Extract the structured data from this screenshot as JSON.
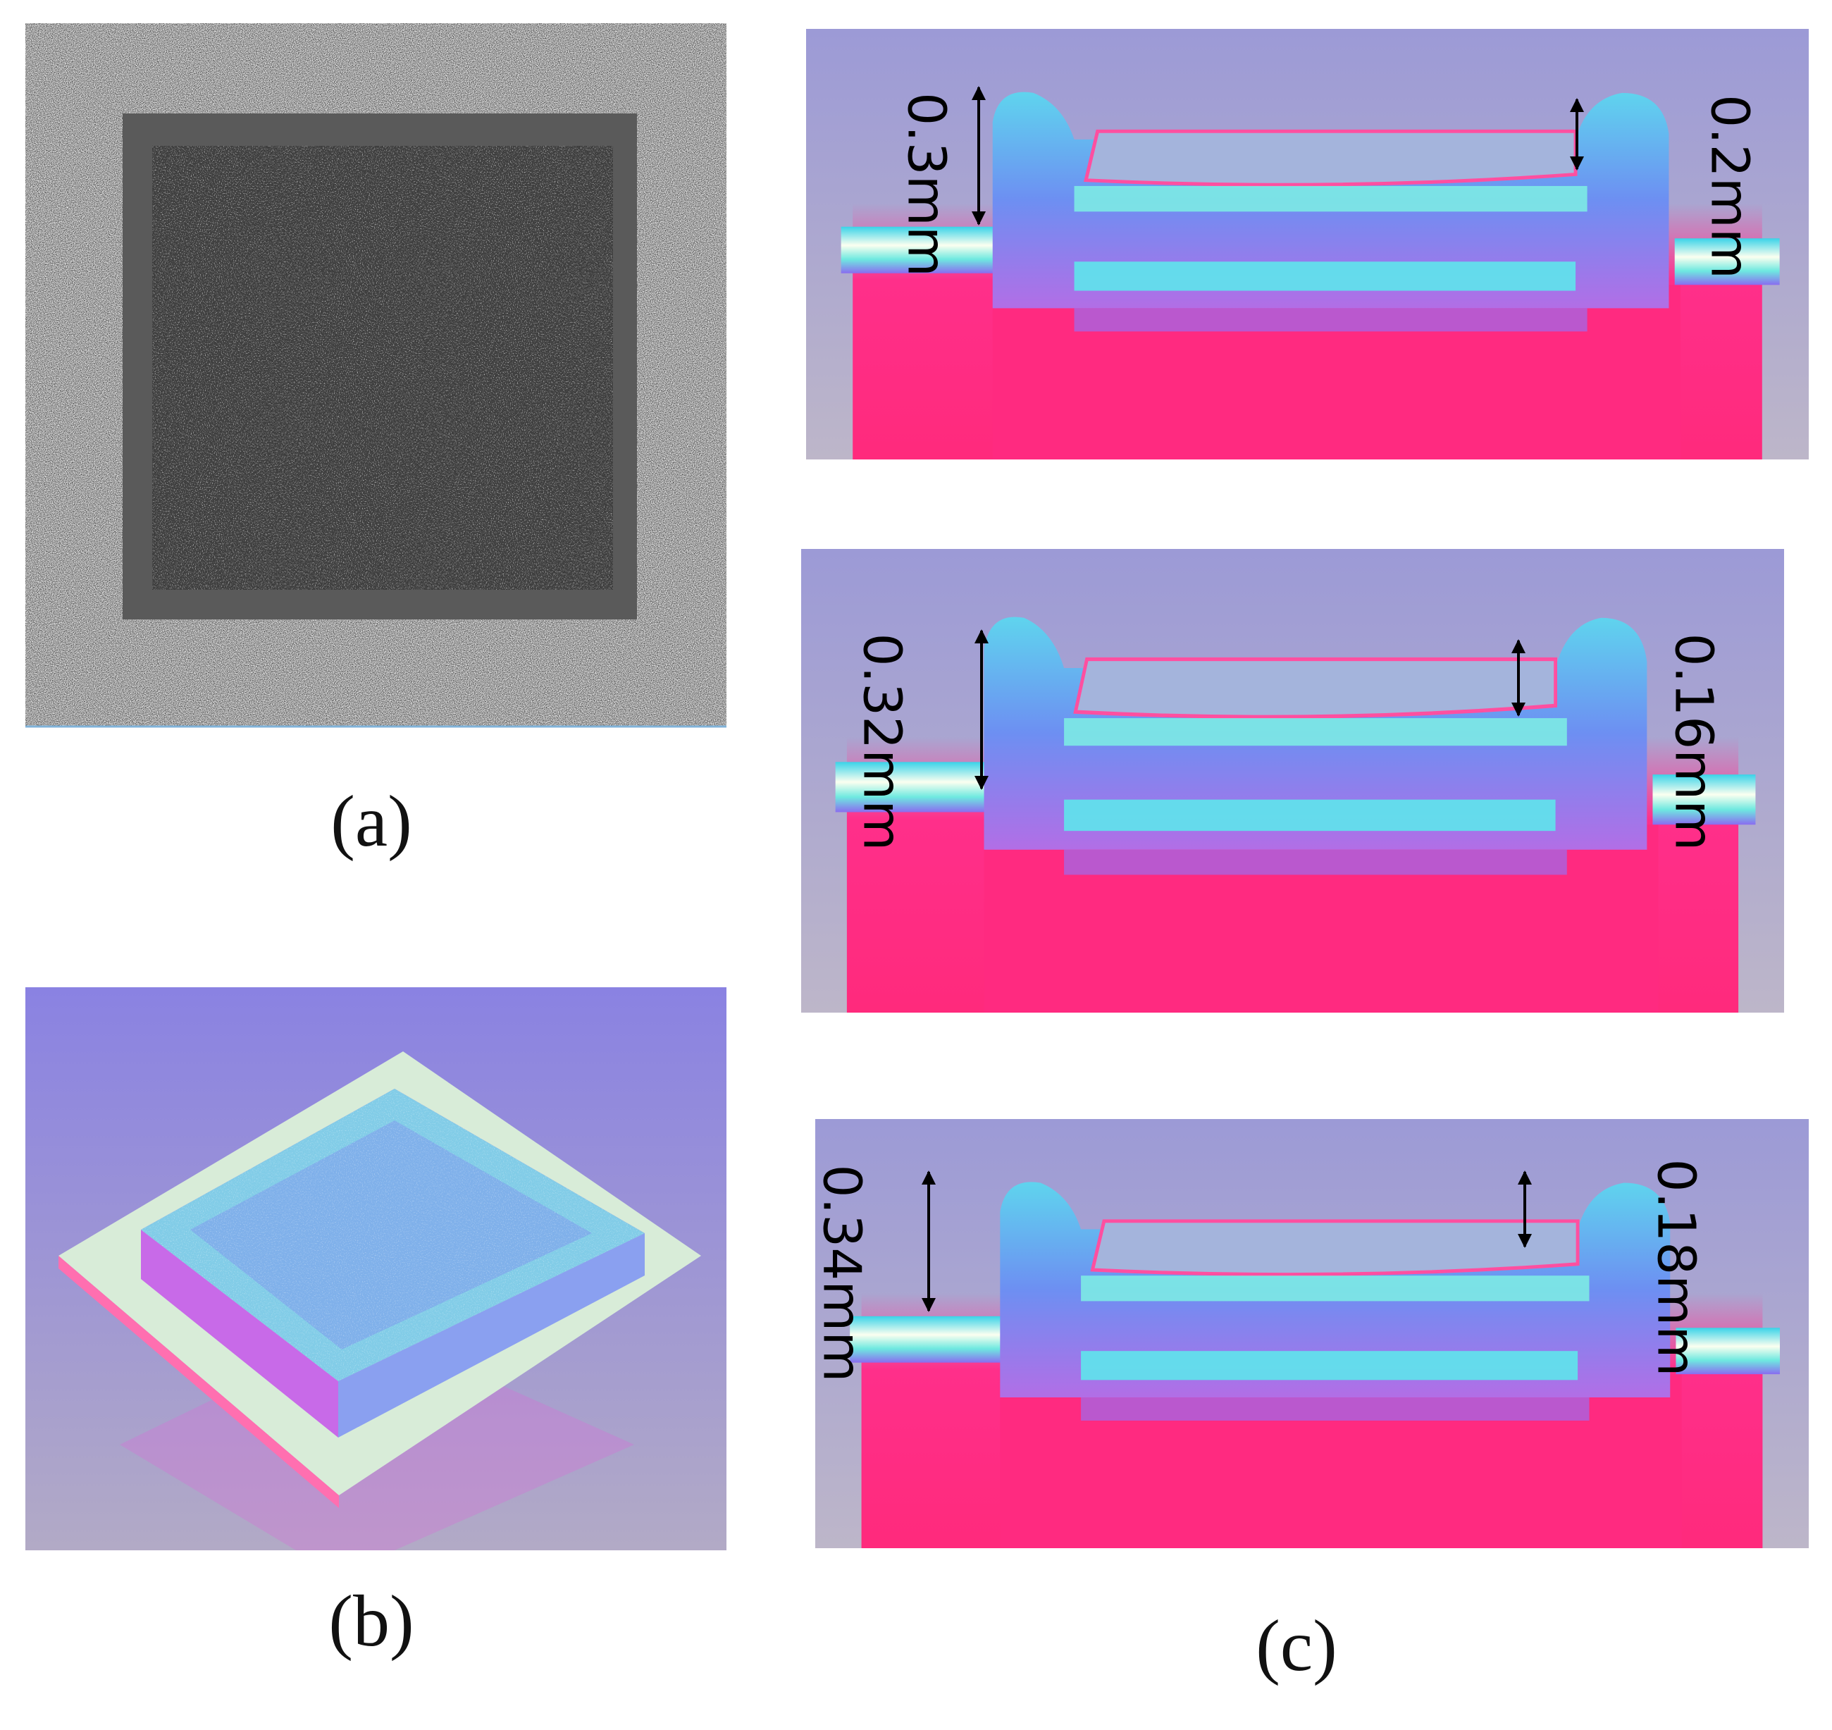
{
  "panels": {
    "a": {
      "label": "(a)"
    },
    "b": {
      "label": "(b)"
    },
    "c": {
      "label": "(c)",
      "sections": [
        {
          "left": "0.3mm",
          "right": "0.2mm"
        },
        {
          "left": "0.32mm",
          "right": "0.16mm"
        },
        {
          "left": "0.34mm",
          "right": "0.18mm"
        }
      ]
    }
  }
}
